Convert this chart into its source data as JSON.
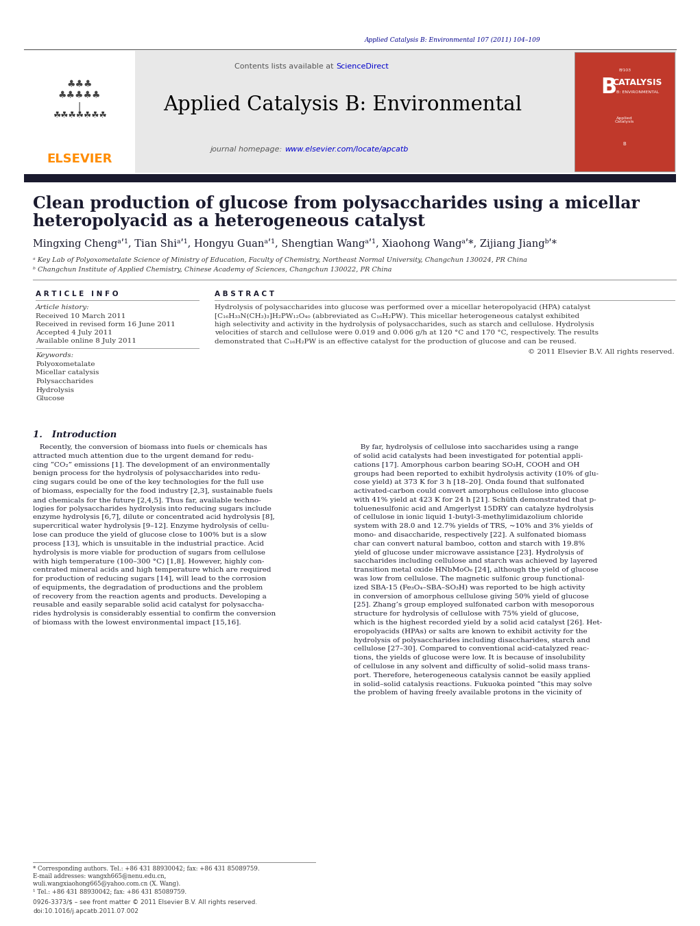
{
  "page_width": 10.21,
  "page_height": 13.51,
  "background_color": "#ffffff",
  "header_citation": "Applied Catalysis B: Environmental 107 (2011) 104–109",
  "header_citation_color": "#00008B",
  "journal_banner_bg": "#e8e8e8",
  "journal_title": "Applied Catalysis B: Environmental",
  "journal_title_color": "#000000",
  "contents_text": "Contents lists available at ",
  "sciencedirect_text": "ScienceDirect",
  "sciencedirect_color": "#0000CC",
  "journal_homepage_text": "journal homepage: ",
  "journal_url": "www.elsevier.com/locate/apcatb",
  "journal_url_color": "#0000CC",
  "elsevier_color": "#FF8C00",
  "dark_bar_color": "#1a1a2e",
  "article_title_line1": "Clean production of glucose from polysaccharides using a micellar",
  "article_title_line2": "heteropolyacid as a heterogeneous catalyst",
  "article_title_color": "#1a1a2e",
  "article_info_heading": "A R T I C L E   I N F O",
  "abstract_heading": "A B S T R A C T",
  "article_history_label": "Article history:",
  "received_1": "Received 10 March 2011",
  "received_2": "Received in revised form 16 June 2011",
  "accepted": "Accepted 4 July 2011",
  "available": "Available online 8 July 2011",
  "keywords_label": "Keywords:",
  "keywords": [
    "Polyoxometalate",
    "Micellar catalysis",
    "Polysaccharides",
    "Hydrolysis",
    "Glucose"
  ],
  "copyright_text": "© 2011 Elsevier B.V. All rights reserved.",
  "intro_heading": "1.   Introduction",
  "footnote_line1": "* Corresponding authors. Tel.: +86 431 88930042; fax: +86 431 85089759.",
  "footnote_line2": "E-mail addresses: wangxh665@nenu.edu.cn,",
  "footnote_line3": "wuli.wangxiaohong665@yahoo.com.cn (X. Wang).",
  "footnote_line4": "¹ Tel.: +86 431 88930042; fax: +86 431 85089759.",
  "issn_text": "0926-3373/$ – see front matter © 2011 Elsevier B.V. All rights reserved.",
  "doi_text": "doi:10.1016/j.apcatb.2011.07.002",
  "abstract_lines": [
    "Hydrolysis of polysaccharides into glucose was performed over a micellar heteropolyacid (HPA) catalyst",
    "[C₁₆H₃₃N(CH₃)₃]H₂PW₁₂O₄₀ (abbreviated as C₁₆H₂PW). This micellar heterogeneous catalyst exhibited",
    "high selectivity and activity in the hydrolysis of polysaccharides, such as starch and cellulose. Hydrolysis",
    "velocities of starch and cellulose were 0.019 and 0.006 g/h at 120 °C and 170 °C, respectively. The results",
    "demonstrated that C₁₆H₂PW is an effective catalyst for the production of glucose and can be reused."
  ],
  "intro_col1_lines": [
    "   Recently, the conversion of biomass into fuels or chemicals has",
    "attracted much attention due to the urgent demand for redu-",
    "cing “CO₂” emissions [1]. The development of an environmentally",
    "benign process for the hydrolysis of polysaccharides into redu-",
    "cing sugars could be one of the key technologies for the full use",
    "of biomass, especially for the food industry [2,3], sustainable fuels",
    "and chemicals for the future [2,4,5]. Thus far, available techno-",
    "logies for polysaccharides hydrolysis into reducing sugars include",
    "enzyme hydrolysis [6,7], dilute or concentrated acid hydrolysis [8],",
    "supercritical water hydrolysis [9–12]. Enzyme hydrolysis of cellu-",
    "lose can produce the yield of glucose close to 100% but is a slow",
    "process [13], which is unsuitable in the industrial practice. Acid",
    "hydrolysis is more viable for production of sugars from cellulose",
    "with high temperature (100–300 °C) [1,8]. However, highly con-",
    "centrated mineral acids and high temperature which are required",
    "for production of reducing sugars [14], will lead to the corrosion",
    "of equipments, the degradation of productions and the problem",
    "of recovery from the reaction agents and products. Developing a",
    "reusable and easily separable solid acid catalyst for polysaccha-",
    "rides hydrolysis is considerably essential to confirm the conversion",
    "of biomass with the lowest environmental impact [15,16]."
  ],
  "intro_col2_lines": [
    "   By far, hydrolysis of cellulose into saccharides using a range",
    "of solid acid catalysts had been investigated for potential appli-",
    "cations [17]. Amorphous carbon bearing SO₃H, COOH and OH",
    "groups had been reported to exhibit hydrolysis activity (10% of glu-",
    "cose yield) at 373 K for 3 h [18–20]. Onda found that sulfonated",
    "activated-carbon could convert amorphous cellulose into glucose",
    "with 41% yield at 423 K for 24 h [21]. Schüth demonstrated that p-",
    "toluenesulfonic acid and Amgerlyst 15DRY can catalyze hydrolysis",
    "of cellulose in ionic liquid 1-butyl-3-methylimidazolium chloride",
    "system with 28.0 and 12.7% yields of TRS, ~10% and 3% yields of",
    "mono- and disaccharide, respectively [22]. A sulfonated biomass",
    "char can convert natural bamboo, cotton and starch with 19.8%",
    "yield of glucose under microwave assistance [23]. Hydrolysis of",
    "saccharides including cellulose and starch was achieved by layered",
    "transition metal oxide HNbMoO₆ [24], although the yield of glucose",
    "was low from cellulose. The magnetic sulfonic group functional-",
    "ized SBA-15 (Fe₃O₄–SBA–SO₃H) was reported to be high activity",
    "in conversion of amorphous cellulose giving 50% yield of glucose",
    "[25]. Zhang’s group employed sulfonated carbon with mesoporous",
    "structure for hydrolysis of cellulose with 75% yield of glucose,",
    "which is the highest recorded yield by a solid acid catalyst [26]. Het-",
    "eropolyacids (HPAs) or salts are known to exhibit activity for the",
    "hydrolysis of polysaccharides including disaccharides, starch and",
    "cellulose [27–30]. Compared to conventional acid-catalyzed reac-",
    "tions, the yields of glucose were low. It is because of insolubility",
    "of cellulose in any solvent and difficulty of solid–solid mass trans-",
    "port. Therefore, heterogeneous catalysis cannot be easily applied",
    "in solid–solid catalysis reactions. Fukuoka pointed “this may solve",
    "the problem of having freely available protons in the vicinity of"
  ]
}
